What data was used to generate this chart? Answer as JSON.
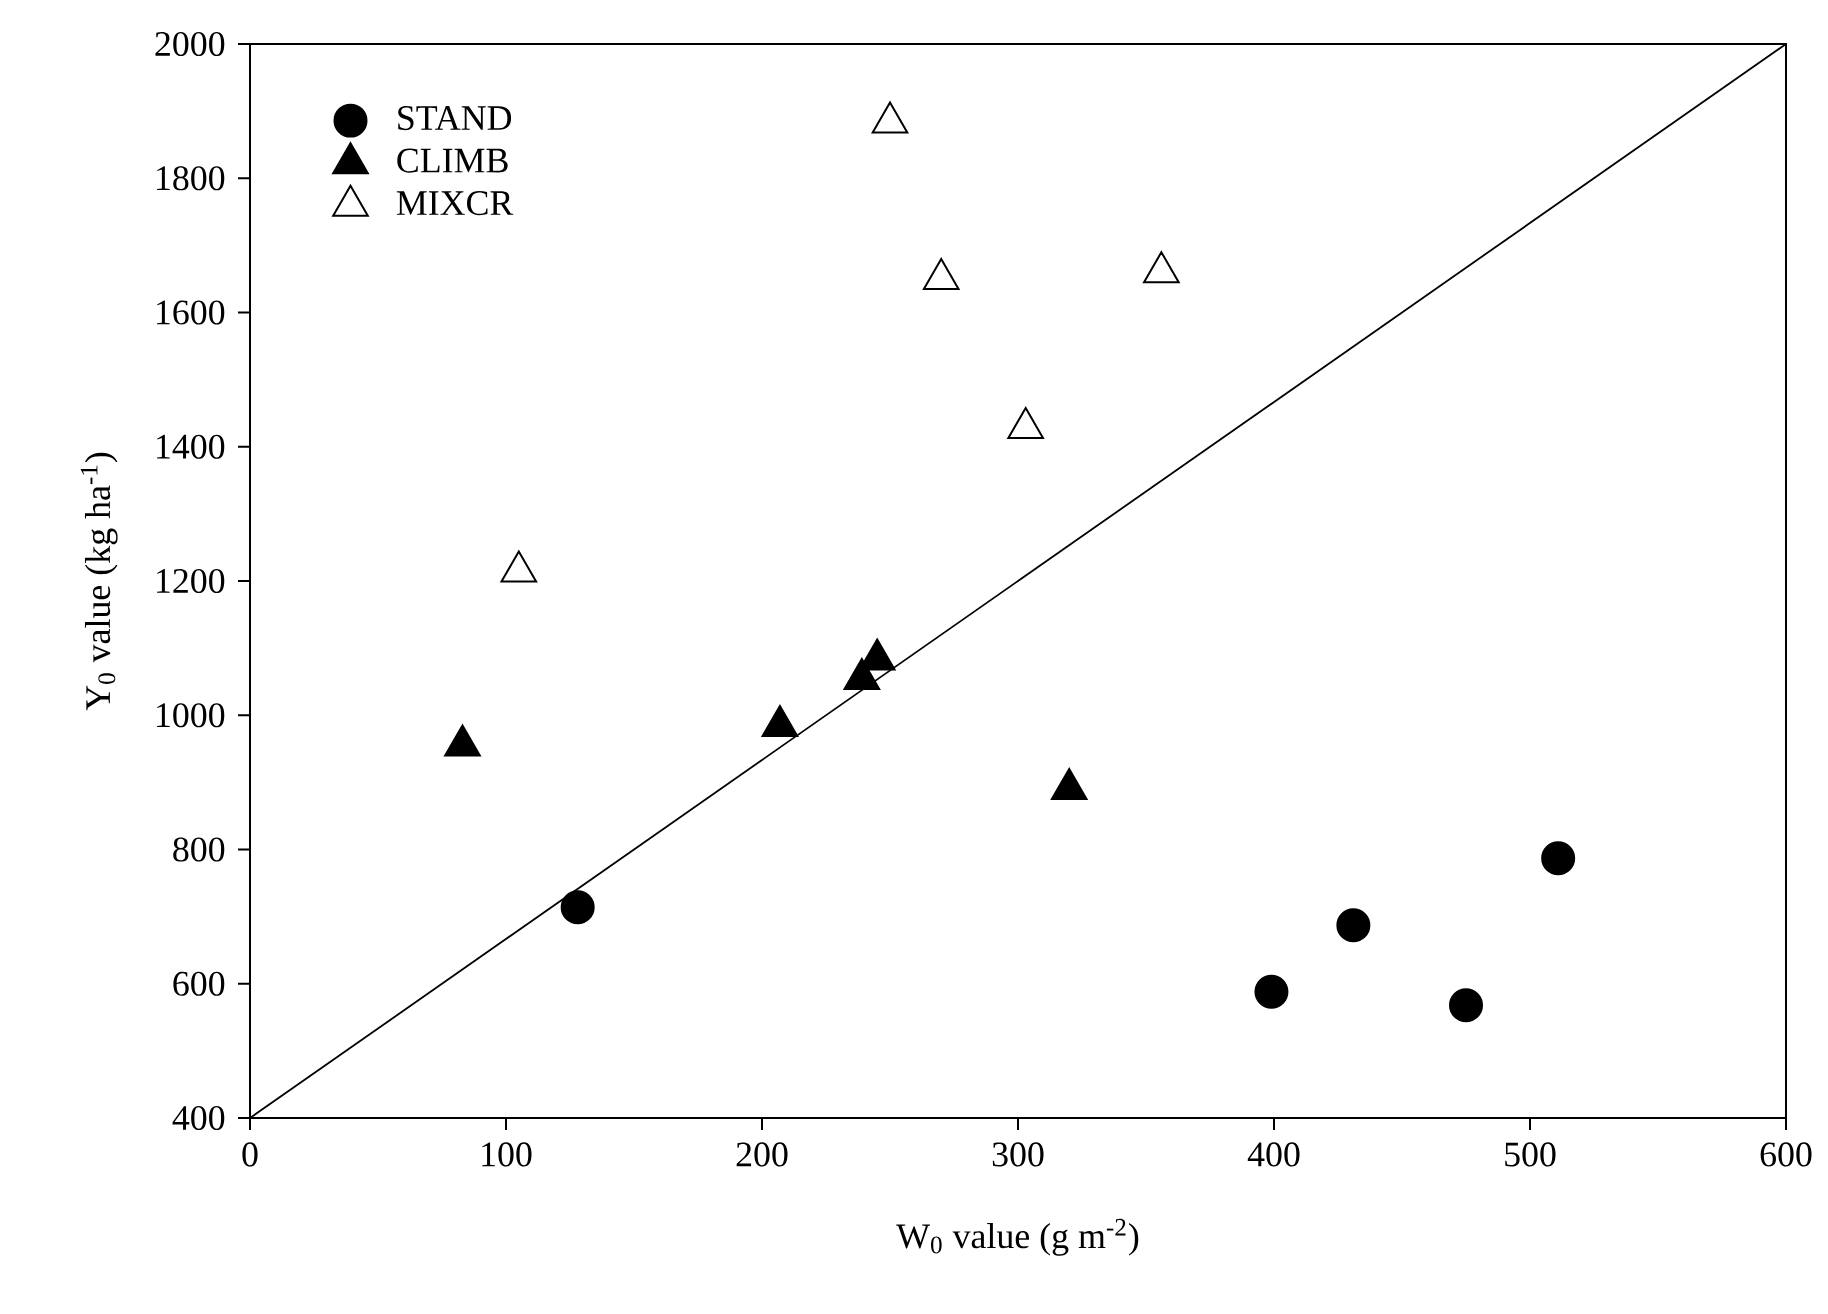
{
  "chart_data": {
    "type": "scatter",
    "xlabel": "W$_{0}$ value (g m$^{-2}$)",
    "ylabel": "Y$_{0}$ value (kg ha$^{-1}$)",
    "xlim": [
      0,
      600
    ],
    "ylim": [
      400,
      2000
    ],
    "xticks": [
      0,
      100,
      200,
      300,
      400,
      500,
      600
    ],
    "yticks": [
      400,
      600,
      800,
      1000,
      1200,
      1400,
      1600,
      1800,
      2000
    ],
    "grid": false,
    "legend": "top left",
    "series": [
      {
        "name": "STAND",
        "color": "#000000",
        "marker": "circle",
        "x": [
          128,
          399,
          431,
          475,
          511
        ],
        "values": [
          714,
          588,
          687,
          568,
          787
        ]
      },
      {
        "name": "CLIMB",
        "color": "#000000",
        "marker": "triangle",
        "x": [
          83,
          207,
          239,
          245,
          320
        ],
        "values": [
          955,
          984,
          1054,
          1083,
          890
        ]
      },
      {
        "name": "MIXCR",
        "color": "#ffffff",
        "marker": "triangle",
        "x": [
          105,
          250,
          270,
          303,
          356
        ],
        "values": [
          1214,
          1883,
          1650,
          1428,
          1660
        ]
      },
      {
        "type": "line",
        "color": "#000000",
        "marker": "none",
        "line_style": "solid",
        "x": [
          0,
          600
        ],
        "values": [
          400,
          2000
        ]
      }
    ]
  }
}
